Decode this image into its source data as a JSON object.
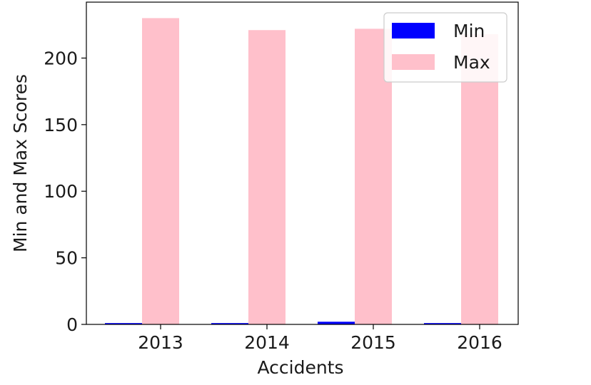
{
  "chart_data": {
    "type": "bar",
    "categories": [
      "2013",
      "2014",
      "2015",
      "2016"
    ],
    "series": [
      {
        "name": "Min",
        "values": [
          1,
          1,
          2,
          1
        ],
        "color": "#0000ff"
      },
      {
        "name": "Max",
        "values": [
          230,
          221,
          222,
          218
        ],
        "color": "#ffc0cb"
      }
    ],
    "xlabel": "Accidents",
    "ylabel": "Min and Max Scores",
    "ylim": [
      0,
      242
    ],
    "yticks": [
      0,
      50,
      100,
      150,
      200
    ],
    "grid": false,
    "legend_position": "top-right"
  }
}
